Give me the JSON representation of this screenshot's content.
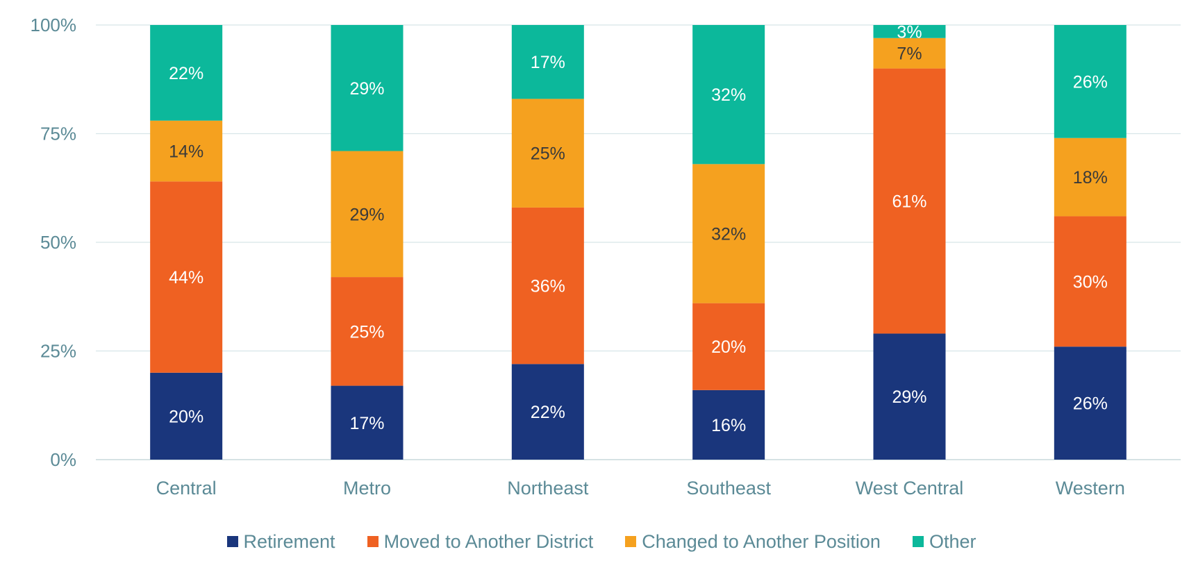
{
  "chart_data": {
    "type": "bar",
    "stacked": true,
    "categories": [
      "Central",
      "Metro",
      "Northeast",
      "Southeast",
      "West Central",
      "Western"
    ],
    "series": [
      {
        "name": "Retirement",
        "color": "#1a367c",
        "label_color": "#ffffff",
        "values": [
          20,
          17,
          22,
          16,
          29,
          26
        ]
      },
      {
        "name": "Moved to Another District",
        "color": "#ef6122",
        "label_color": "#ffffff",
        "values": [
          44,
          25,
          36,
          20,
          61,
          30
        ]
      },
      {
        "name": "Changed to Another Position",
        "color": "#f5a11f",
        "label_color": "#3a3a3a",
        "values": [
          14,
          29,
          25,
          32,
          7,
          18
        ]
      },
      {
        "name": "Other",
        "color": "#0cb89b",
        "label_color": "#ffffff",
        "values": [
          22,
          29,
          17,
          32,
          3,
          26
        ]
      }
    ],
    "data_labels": [
      [
        "20%",
        "17%",
        "22%",
        "16%",
        "29%",
        "26%"
      ],
      [
        "44%",
        "25%",
        "36%",
        "20%",
        "61%",
        "30%"
      ],
      [
        "14%",
        "29%",
        "25%",
        "32%",
        "7%",
        "18%"
      ],
      [
        "22%",
        "29%",
        "17%",
        "32%",
        "3%",
        "26%"
      ]
    ],
    "y_ticks": [
      "0%",
      "25%",
      "50%",
      "75%",
      "100%"
    ],
    "ylim": [
      0,
      100
    ],
    "grid": true,
    "legend_position": "bottom",
    "title": "",
    "xlabel": "",
    "ylabel": ""
  }
}
